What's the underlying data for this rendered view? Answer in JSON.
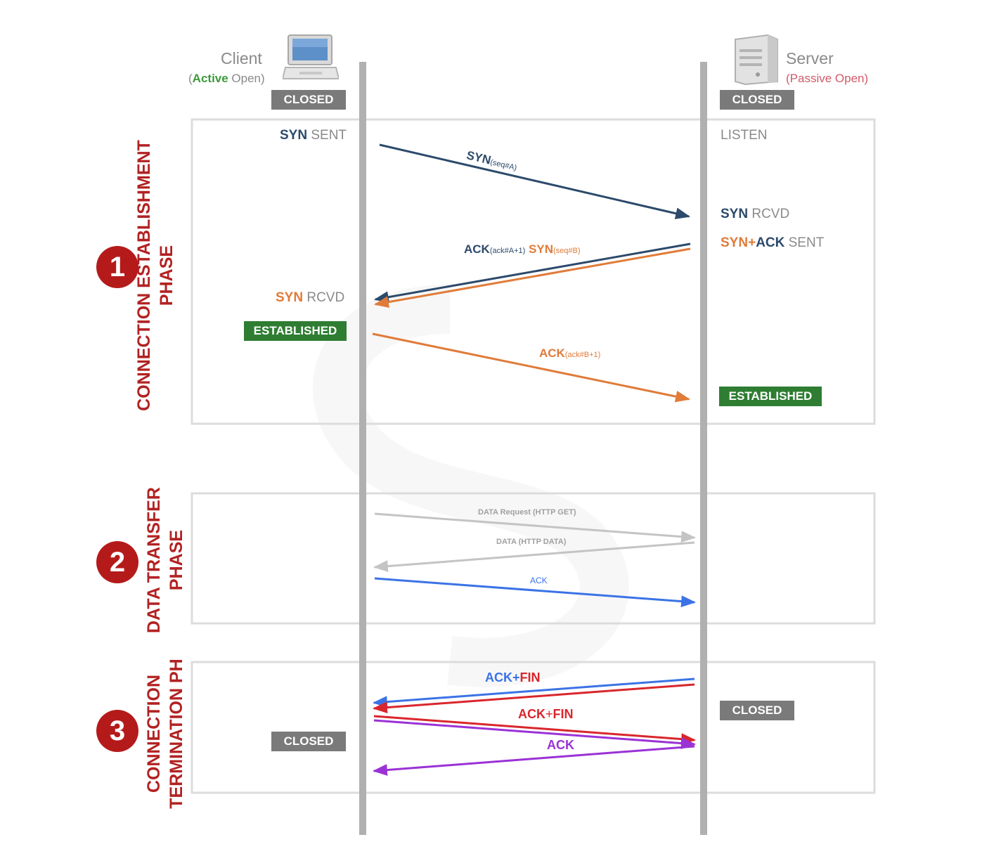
{
  "client": {
    "label": "Client",
    "paren_open": "(",
    "mode_strong": "Active",
    "mode_rest": " Open)"
  },
  "server": {
    "label": "Server",
    "mode": "(Passive Open)"
  },
  "phases": [
    {
      "number": "1",
      "title_line1": "CONNECTION ESTABLISHMENT",
      "title_line2": "PHASE"
    },
    {
      "number": "2",
      "title_line1": "DATA TRANSFER",
      "title_line2": "PHASE"
    },
    {
      "number": "3",
      "title_line1": "CONNECTION",
      "title_line2": "TERMINATION PH"
    }
  ],
  "states": {
    "client_closed_top": "CLOSED",
    "server_closed_top": "CLOSED",
    "client_syn_sent": {
      "a": "SYN",
      "b": " SENT"
    },
    "server_listen": "LISTEN",
    "server_syn_rcvd": {
      "a": "SYN",
      "b": " RCVD"
    },
    "server_synack_sent": {
      "a": "SYN",
      "b": "+",
      "c": "ACK",
      "d": " SENT"
    },
    "client_syn_rcvd": {
      "a": "SYN",
      "b": " RCVD"
    },
    "client_established": "ESTABLISHED",
    "server_established": "ESTABLISHED",
    "server_closed_bottom": "CLOSED",
    "client_closed_bottom": "CLOSED"
  },
  "messages": {
    "syn": {
      "main": "SYN",
      "sub": "(seq#A)"
    },
    "ack_syn": {
      "ack": "ACK",
      "ack_sub": "(ack#A+1)",
      "syn": " SYN",
      "syn_sub": "(seq#B)"
    },
    "ack_b": {
      "main": "ACK",
      "sub": "(ack#B+1)"
    },
    "data_request": "DATA Request (HTTP GET)",
    "data_response": "DATA (HTTP DATA)",
    "data_ack": "ACK",
    "fin1": {
      "a": "ACK",
      "b": "+",
      "c": "FIN"
    },
    "fin2": {
      "a": "ACK",
      "b": "+",
      "c": "FIN"
    },
    "final_ack": "ACK"
  },
  "colors": {
    "lifeline": "#b0b0b0",
    "closed_badge": "#7a7a7a",
    "established_badge": "#2e7d32",
    "phase_red": "#b22222",
    "syn_navy": "#2c4a6b",
    "orange": "#e07b39",
    "grey_msg": "#c4c4c4",
    "blue": "#3b73e6",
    "red": "#d9262c",
    "purple": "#9a32d6",
    "green": "#3c9a3c",
    "pink": "#d05a6a"
  }
}
